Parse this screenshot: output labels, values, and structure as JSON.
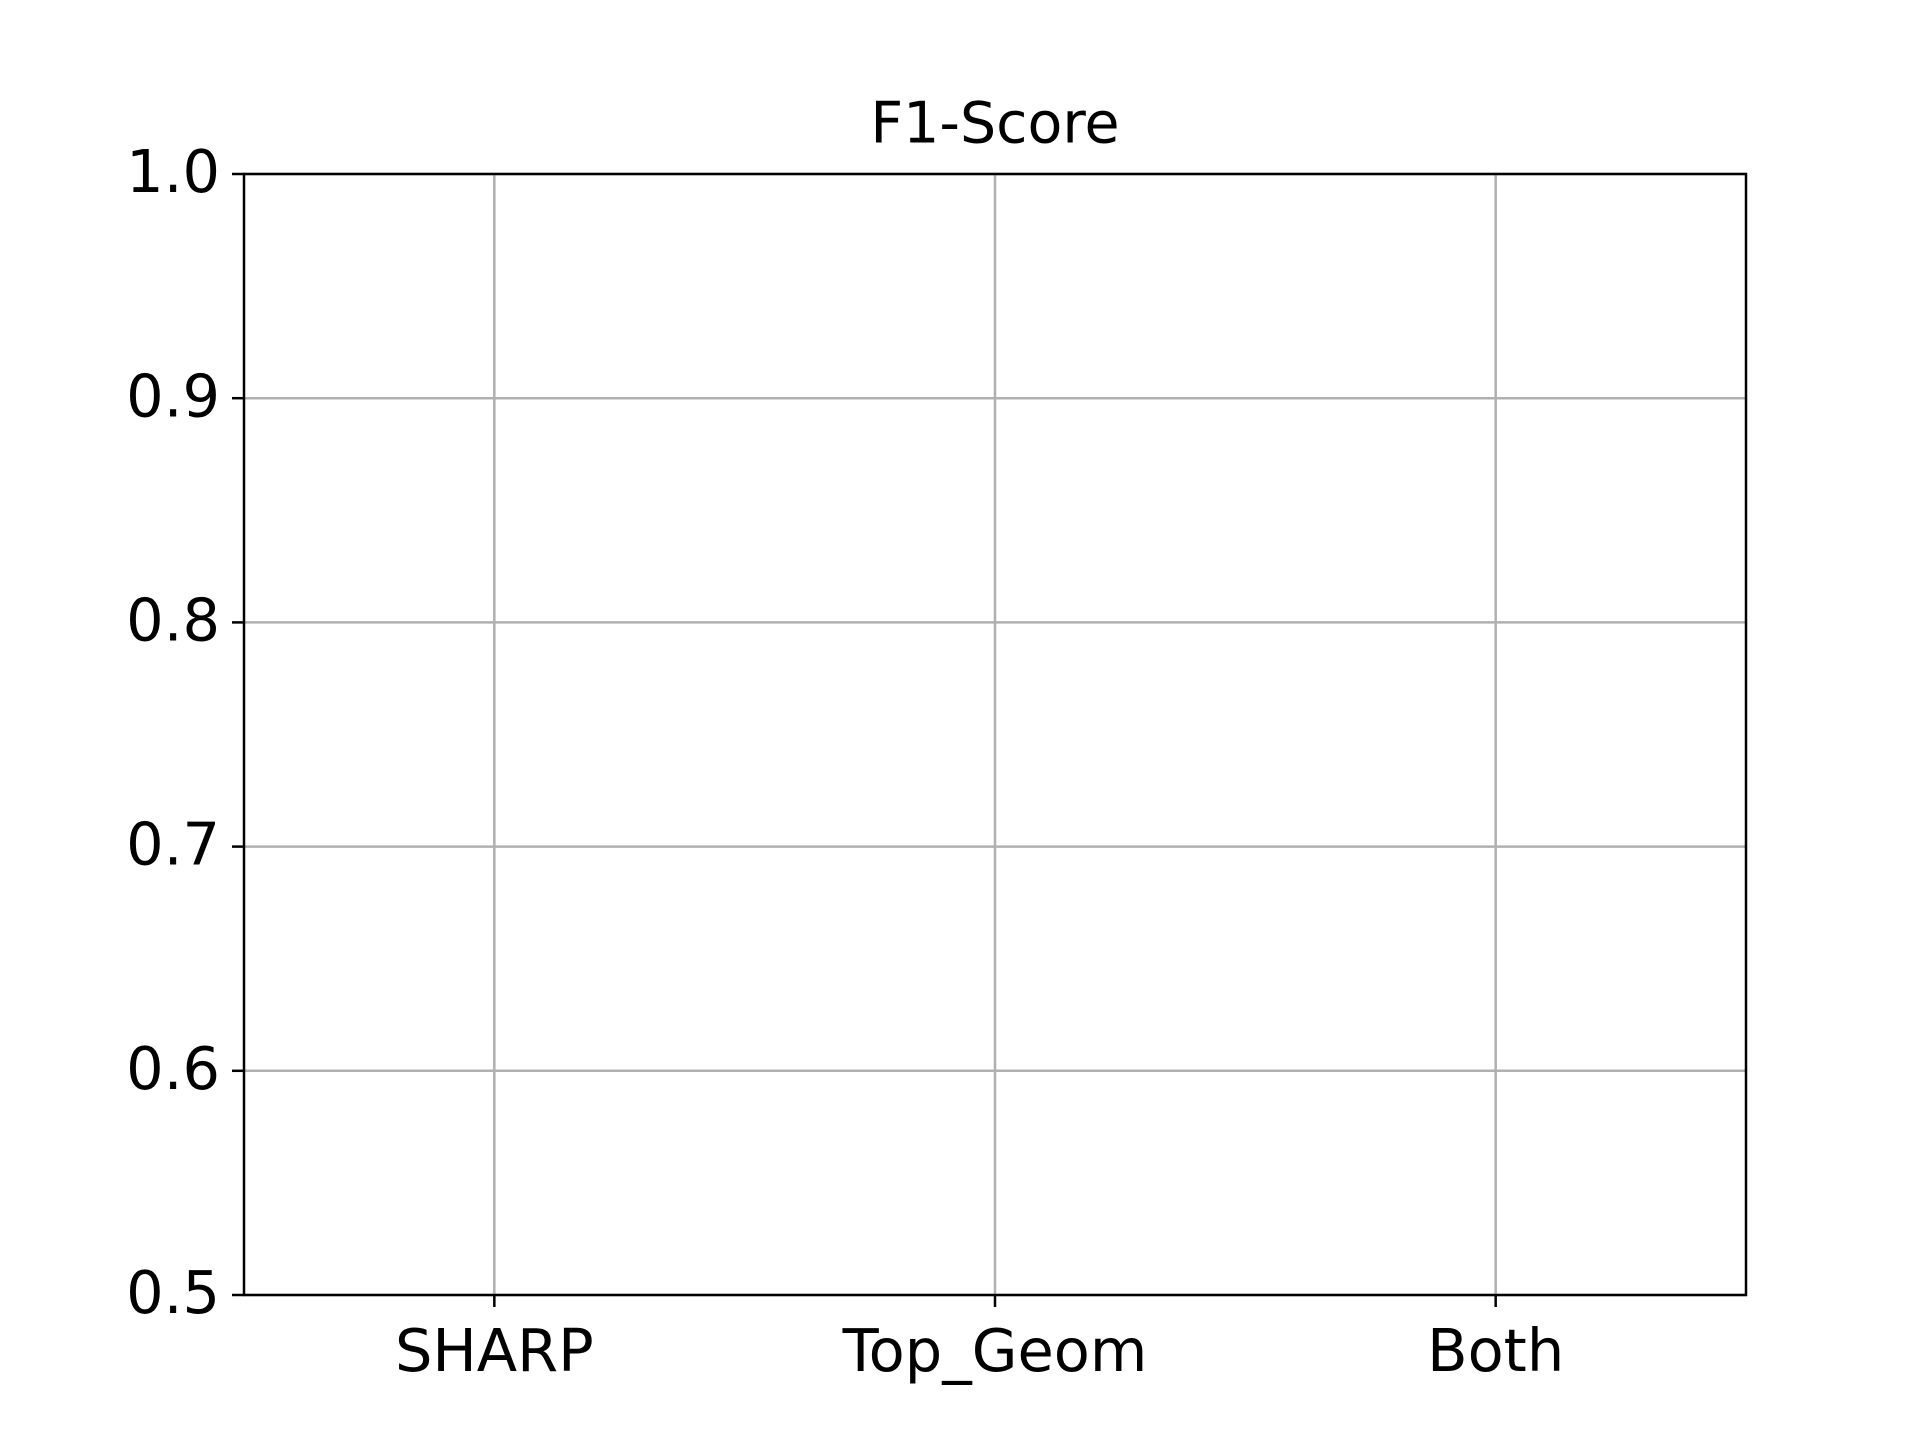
{
  "chart_data": {
    "type": "bar",
    "title": "F1-Score",
    "categories": [
      "SHARP",
      "Top_Geom",
      "Both"
    ],
    "ylim": [
      0.5,
      1.0
    ],
    "yticks": [
      0.5,
      0.6,
      0.7,
      0.8,
      0.9,
      {
        "value": 1.0,
        "label": "1.0"
      }
    ],
    "grid": true
  }
}
